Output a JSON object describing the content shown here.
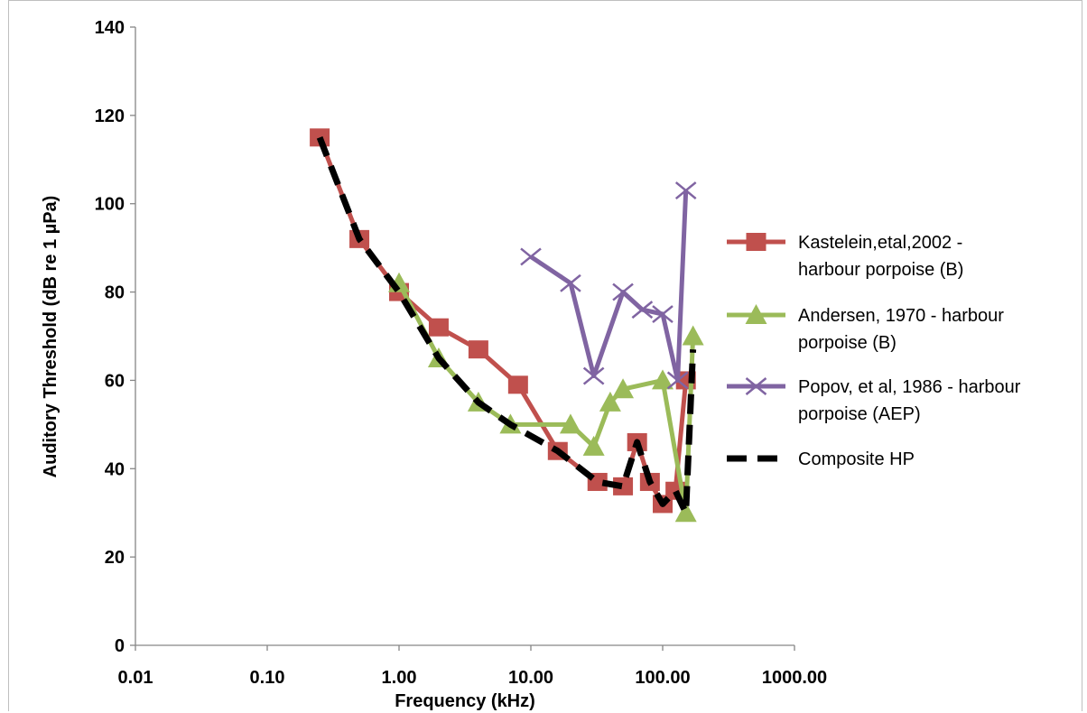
{
  "chart_data": {
    "type": "line",
    "title": "",
    "xlabel": "Frequency (kHz)",
    "ylabel": "Auditory Threshold (dB re 1 µPa)",
    "x_scale": "log",
    "xlim": [
      0.01,
      1000
    ],
    "ylim": [
      0,
      140
    ],
    "x_tick_labels": [
      "0.01",
      "0.10",
      "1.00",
      "10.00",
      "100.00",
      "1000.00"
    ],
    "x_tick_values": [
      0.01,
      0.1,
      1,
      10,
      100,
      1000
    ],
    "y_tick_labels": [
      "0",
      "20",
      "40",
      "60",
      "80",
      "100",
      "120",
      "140"
    ],
    "y_tick_values": [
      0,
      20,
      40,
      60,
      80,
      100,
      120,
      140
    ],
    "grid": false,
    "legend_position": "right",
    "series": [
      {
        "name": "Kastelein,etal,2002 - harbour porpoise (B)",
        "legend_lines": [
          "Kastelein,etal,2002 -",
          "harbour porpoise (B)"
        ],
        "color": "#c0504d",
        "marker": "square",
        "dash": "solid",
        "x": [
          0.25,
          0.5,
          1,
          2,
          4,
          8,
          16,
          32,
          50,
          64,
          80,
          100,
          125,
          150
        ],
        "y": [
          115,
          92,
          80,
          72,
          67,
          59,
          44,
          37,
          36,
          46,
          37,
          32,
          35,
          60
        ]
      },
      {
        "name": "Andersen, 1970 - harbour porpoise (B)",
        "legend_lines": [
          "Andersen, 1970 - harbour",
          "porpoise (B)"
        ],
        "color": "#9bbb59",
        "marker": "triangle",
        "dash": "solid",
        "x": [
          1,
          2,
          4,
          7,
          20,
          30,
          40,
          50,
          100,
          150,
          170
        ],
        "y": [
          82,
          65,
          55,
          50,
          50,
          45,
          55,
          58,
          60,
          30,
          70
        ]
      },
      {
        "name": "Popov, et al, 1986 - harbour porpoise (AEP)",
        "legend_lines": [
          "Popov, et al, 1986 - harbour",
          "porpoise (AEP)"
        ],
        "color": "#8064a2",
        "marker": "x",
        "dash": "solid",
        "x": [
          10,
          20,
          30,
          50,
          70,
          100,
          130,
          150
        ],
        "y": [
          88,
          82,
          61,
          80,
          76,
          75,
          60,
          103
        ]
      },
      {
        "name": "Composite HP",
        "legend_lines": [
          "Composite HP"
        ],
        "color": "#000000",
        "marker": "none",
        "dash": "dashed",
        "x": [
          0.25,
          0.5,
          1,
          2,
          4,
          7,
          16,
          32,
          50,
          64,
          80,
          100,
          125,
          150,
          170
        ],
        "y": [
          115,
          92,
          80,
          65,
          55,
          50,
          44,
          37,
          36,
          46,
          37,
          32,
          35,
          30,
          67
        ]
      }
    ]
  }
}
